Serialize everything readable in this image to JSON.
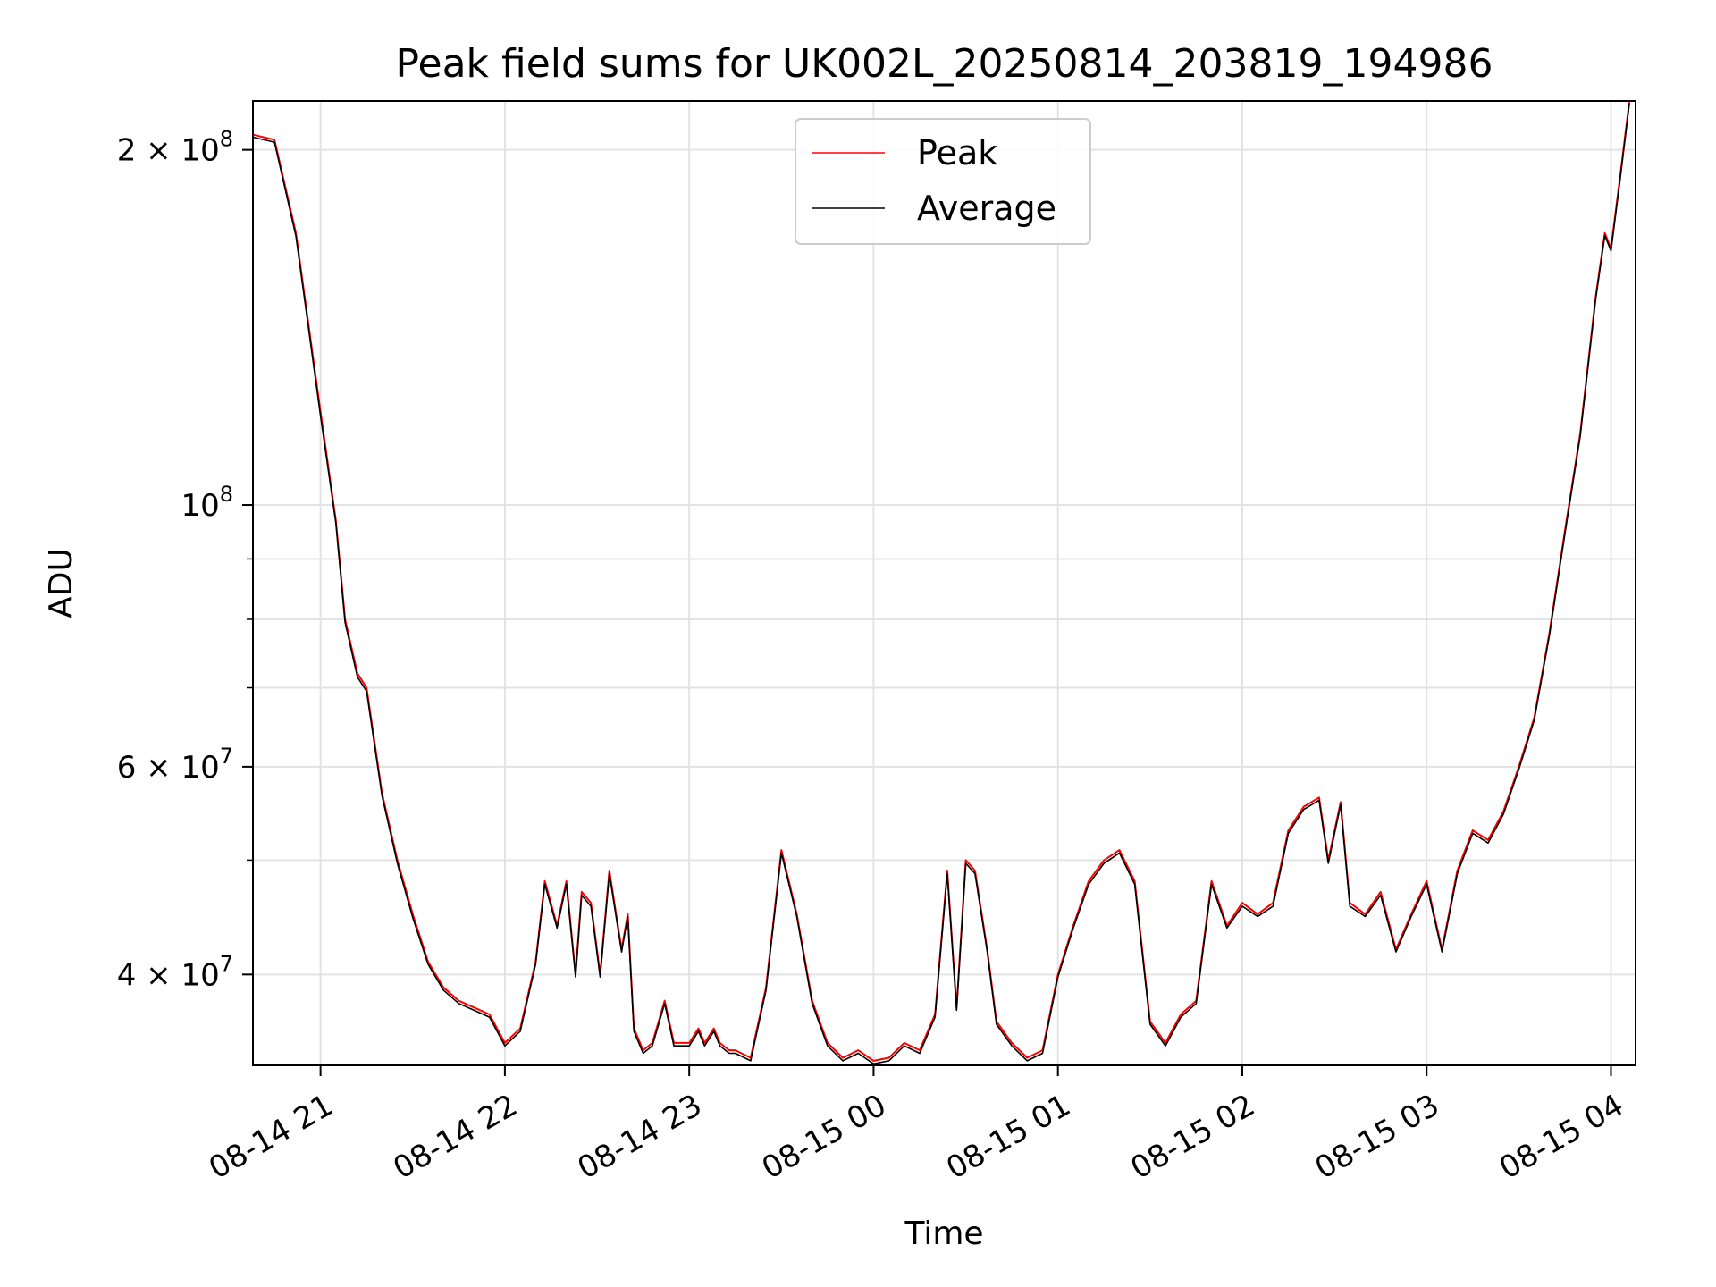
{
  "chart_data": {
    "type": "line",
    "title": "Peak field sums for UK002L_20250814_203819_194986",
    "xlabel": "Time",
    "ylabel": "ADU",
    "y_scale": "log",
    "ylim": [
      33500000,
      220000000
    ],
    "xlim": [
      "2025-08-14 20:38",
      "2025-08-15 04:08"
    ],
    "x_ticks": [
      {
        "t": "2025-08-14 21:00",
        "label": "08-14 21"
      },
      {
        "t": "2025-08-14 22:00",
        "label": "08-14 22"
      },
      {
        "t": "2025-08-14 23:00",
        "label": "08-14 23"
      },
      {
        "t": "2025-08-15 00:00",
        "label": "08-15 00"
      },
      {
        "t": "2025-08-15 01:00",
        "label": "08-15 01"
      },
      {
        "t": "2025-08-15 02:00",
        "label": "08-15 02"
      },
      {
        "t": "2025-08-15 03:00",
        "label": "08-15 03"
      },
      {
        "t": "2025-08-15 04:00",
        "label": "08-15 04"
      }
    ],
    "y_major_ticks": [
      {
        "value": 40000000,
        "mantissa": "4",
        "exp": "7"
      },
      {
        "value": 60000000,
        "mantissa": "6",
        "exp": "7"
      },
      {
        "value": 100000000,
        "mantissa": "",
        "exp": "8"
      },
      {
        "value": 200000000,
        "mantissa": "2",
        "exp": "8"
      }
    ],
    "y_minor_ticks": [
      50000000,
      70000000,
      80000000,
      90000000
    ],
    "grid": true,
    "legend_position": "top-center",
    "series": [
      {
        "name": "Peak",
        "color": "#ff0000"
      },
      {
        "name": "Average",
        "color": "#000000"
      }
    ],
    "x": [
      "2025-08-14 20:38",
      "2025-08-14 20:45",
      "2025-08-14 20:52",
      "2025-08-14 21:00",
      "2025-08-14 21:05",
      "2025-08-14 21:08",
      "2025-08-14 21:12",
      "2025-08-14 21:15",
      "2025-08-14 21:20",
      "2025-08-14 21:25",
      "2025-08-14 21:30",
      "2025-08-14 21:35",
      "2025-08-14 21:40",
      "2025-08-14 21:45",
      "2025-08-14 21:50",
      "2025-08-14 21:55",
      "2025-08-14 22:00",
      "2025-08-14 22:05",
      "2025-08-14 22:10",
      "2025-08-14 22:13",
      "2025-08-14 22:17",
      "2025-08-14 22:20",
      "2025-08-14 22:23",
      "2025-08-14 22:25",
      "2025-08-14 22:28",
      "2025-08-14 22:31",
      "2025-08-14 22:34",
      "2025-08-14 22:38",
      "2025-08-14 22:40",
      "2025-08-14 22:42",
      "2025-08-14 22:45",
      "2025-08-14 22:48",
      "2025-08-14 22:52",
      "2025-08-14 22:55",
      "2025-08-14 23:00",
      "2025-08-14 23:03",
      "2025-08-14 23:05",
      "2025-08-14 23:08",
      "2025-08-14 23:10",
      "2025-08-14 23:13",
      "2025-08-14 23:15",
      "2025-08-14 23:20",
      "2025-08-14 23:25",
      "2025-08-14 23:30",
      "2025-08-14 23:35",
      "2025-08-14 23:40",
      "2025-08-14 23:45",
      "2025-08-14 23:50",
      "2025-08-14 23:55",
      "2025-08-15 00:00",
      "2025-08-15 00:05",
      "2025-08-15 00:10",
      "2025-08-15 00:15",
      "2025-08-15 00:20",
      "2025-08-15 00:24",
      "2025-08-15 00:27",
      "2025-08-15 00:30",
      "2025-08-15 00:33",
      "2025-08-15 00:37",
      "2025-08-15 00:40",
      "2025-08-15 00:45",
      "2025-08-15 00:50",
      "2025-08-15 00:55",
      "2025-08-15 01:00",
      "2025-08-15 01:05",
      "2025-08-15 01:10",
      "2025-08-15 01:15",
      "2025-08-15 01:20",
      "2025-08-15 01:25",
      "2025-08-15 01:30",
      "2025-08-15 01:35",
      "2025-08-15 01:40",
      "2025-08-15 01:45",
      "2025-08-15 01:50",
      "2025-08-15 01:55",
      "2025-08-15 02:00",
      "2025-08-15 02:05",
      "2025-08-15 02:10",
      "2025-08-15 02:15",
      "2025-08-15 02:20",
      "2025-08-15 02:25",
      "2025-08-15 02:28",
      "2025-08-15 02:32",
      "2025-08-15 02:35",
      "2025-08-15 02:40",
      "2025-08-15 02:45",
      "2025-08-15 02:50",
      "2025-08-15 02:55",
      "2025-08-15 03:00",
      "2025-08-15 03:05",
      "2025-08-15 03:10",
      "2025-08-15 03:15",
      "2025-08-15 03:20",
      "2025-08-15 03:25",
      "2025-08-15 03:30",
      "2025-08-15 03:35",
      "2025-08-15 03:40",
      "2025-08-15 03:45",
      "2025-08-15 03:50",
      "2025-08-15 03:55",
      "2025-08-15 03:58",
      "2025-08-15 04:00",
      "2025-08-15 04:03",
      "2025-08-15 04:06"
    ],
    "peak_values": [
      206000000,
      204000000,
      170000000,
      120000000,
      97000000,
      80000000,
      72000000,
      70000000,
      57000000,
      50000000,
      45000000,
      41000000,
      39000000,
      38000000,
      37500000,
      37000000,
      35000000,
      36000000,
      41000000,
      48000000,
      44000000,
      48000000,
      40000000,
      47000000,
      46000000,
      40000000,
      49000000,
      42000000,
      45000000,
      36000000,
      34500000,
      35000000,
      38000000,
      35000000,
      35000000,
      36000000,
      35000000,
      36000000,
      35000000,
      34500000,
      34500000,
      34000000,
      39000000,
      51000000,
      45000000,
      38000000,
      35000000,
      34000000,
      34500000,
      33800000,
      34000000,
      35000000,
      34500000,
      37000000,
      49000000,
      37500000,
      50000000,
      49000000,
      42000000,
      36500000,
      35000000,
      34000000,
      34500000,
      40000000,
      44000000,
      48000000,
      50000000,
      51000000,
      48000000,
      36500000,
      35000000,
      37000000,
      38000000,
      48000000,
      44000000,
      46000000,
      45000000,
      46000000,
      53000000,
      55500000,
      56500000,
      50000000,
      56000000,
      46000000,
      45000000,
      47000000,
      42000000,
      45000000,
      48000000,
      42000000,
      49000000,
      53000000,
      52000000,
      55000000,
      60000000,
      66000000,
      78000000,
      95000000,
      115000000,
      150000000,
      170000000,
      165000000,
      190000000,
      220000000
    ],
    "average_values": [
      205000000,
      203000000,
      169000000,
      119000000,
      96500000,
      79500000,
      71500000,
      69500000,
      56700000,
      49700000,
      44700000,
      40800000,
      38800000,
      37800000,
      37300000,
      36800000,
      34800000,
      35800000,
      40800000,
      47700000,
      43800000,
      47700000,
      39800000,
      46700000,
      45700000,
      39800000,
      48700000,
      41800000,
      44800000,
      35800000,
      34300000,
      34800000,
      37800000,
      34800000,
      34800000,
      35800000,
      34800000,
      35800000,
      34800000,
      34300000,
      34300000,
      33800000,
      38800000,
      50700000,
      44800000,
      37800000,
      34800000,
      33800000,
      34300000,
      33600000,
      33800000,
      34800000,
      34300000,
      36800000,
      48700000,
      37300000,
      49700000,
      48700000,
      41800000,
      36300000,
      34800000,
      33800000,
      34300000,
      39800000,
      43800000,
      47700000,
      49700000,
      50700000,
      47700000,
      36300000,
      34800000,
      36800000,
      37800000,
      47700000,
      43800000,
      45700000,
      44800000,
      45700000,
      52700000,
      55200000,
      56200000,
      49700000,
      55700000,
      45700000,
      44800000,
      46700000,
      41800000,
      44800000,
      47700000,
      41800000,
      48700000,
      52700000,
      51700000,
      54700000,
      59700000,
      65700000,
      77600000,
      94500000,
      114400000,
      149300000,
      169200000,
      164200000,
      189000000,
      219000000
    ]
  }
}
